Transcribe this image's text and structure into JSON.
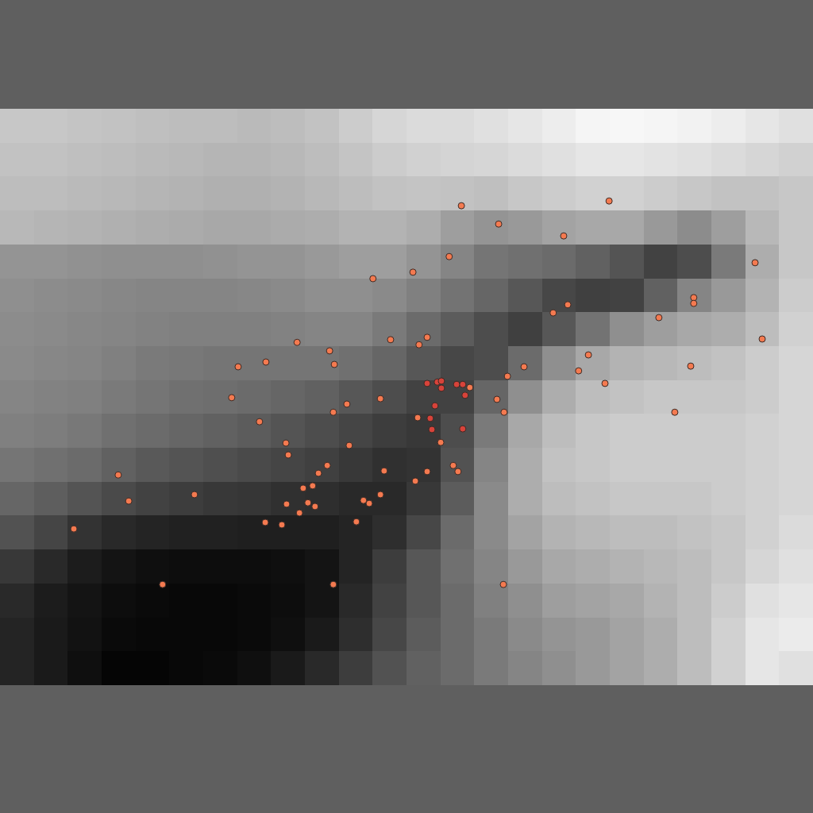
{
  "chart_data": {
    "type": "heatmap_scatter",
    "tick_labels": false,
    "grid": false,
    "xlim": [
      0,
      24
    ],
    "ylim": [
      17,
      0
    ],
    "heatmap": {
      "x": [
        0.5,
        1.5,
        2.5,
        3.5,
        4.5,
        5.5,
        6.5,
        7.5,
        8.5,
        9.5,
        10.5,
        11.5,
        12.5,
        13.5,
        14.5,
        15.5,
        16.5,
        17.5,
        18.5,
        19.5,
        20.5,
        21.5,
        22.5,
        23.5
      ],
      "y": [
        0.5,
        1.5,
        2.5,
        3.5,
        4.5,
        5.5,
        6.5,
        7.5,
        8.5,
        9.5,
        10.5,
        11.5,
        12.5,
        13.5,
        14.5,
        15.5,
        16.5
      ],
      "zlim": [
        0,
        1
      ],
      "z": [
        [
          0.78,
          0.78,
          0.77,
          0.76,
          0.75,
          0.74,
          0.74,
          0.73,
          0.74,
          0.76,
          0.8,
          0.84,
          0.86,
          0.86,
          0.88,
          0.9,
          0.93,
          0.96,
          0.97,
          0.96,
          0.95,
          0.93,
          0.9,
          0.88
        ],
        [
          0.76,
          0.76,
          0.75,
          0.74,
          0.73,
          0.72,
          0.71,
          0.71,
          0.72,
          0.74,
          0.77,
          0.8,
          0.82,
          0.83,
          0.84,
          0.86,
          0.88,
          0.9,
          0.9,
          0.89,
          0.88,
          0.86,
          0.84,
          0.82
        ],
        [
          0.74,
          0.74,
          0.73,
          0.72,
          0.71,
          0.7,
          0.69,
          0.69,
          0.7,
          0.72,
          0.74,
          0.76,
          0.77,
          0.76,
          0.75,
          0.78,
          0.8,
          0.82,
          0.82,
          0.8,
          0.78,
          0.76,
          0.76,
          0.78
        ],
        [
          0.72,
          0.71,
          0.7,
          0.69,
          0.68,
          0.67,
          0.66,
          0.66,
          0.67,
          0.68,
          0.7,
          0.7,
          0.68,
          0.62,
          0.58,
          0.6,
          0.64,
          0.66,
          0.66,
          0.6,
          0.55,
          0.62,
          0.72,
          0.78
        ],
        [
          0.58,
          0.58,
          0.57,
          0.56,
          0.56,
          0.56,
          0.57,
          0.58,
          0.58,
          0.6,
          0.62,
          0.62,
          0.58,
          0.52,
          0.46,
          0.44,
          0.42,
          0.38,
          0.33,
          0.26,
          0.3,
          0.48,
          0.68,
          0.78
        ],
        [
          0.56,
          0.55,
          0.54,
          0.53,
          0.52,
          0.52,
          0.52,
          0.53,
          0.54,
          0.56,
          0.56,
          0.54,
          0.5,
          0.45,
          0.4,
          0.34,
          0.28,
          0.25,
          0.26,
          0.38,
          0.52,
          0.6,
          0.7,
          0.8
        ],
        [
          0.55,
          0.54,
          0.53,
          0.52,
          0.51,
          0.5,
          0.5,
          0.5,
          0.51,
          0.52,
          0.52,
          0.48,
          0.42,
          0.36,
          0.3,
          0.25,
          0.34,
          0.45,
          0.56,
          0.62,
          0.66,
          0.68,
          0.74,
          0.82
        ],
        [
          0.54,
          0.53,
          0.52,
          0.5,
          0.48,
          0.47,
          0.46,
          0.46,
          0.46,
          0.46,
          0.44,
          0.4,
          0.34,
          0.28,
          0.3,
          0.42,
          0.56,
          0.66,
          0.7,
          0.72,
          0.74,
          0.76,
          0.8,
          0.84
        ],
        [
          0.52,
          0.51,
          0.5,
          0.48,
          0.46,
          0.44,
          0.43,
          0.42,
          0.4,
          0.38,
          0.34,
          0.3,
          0.26,
          0.26,
          0.4,
          0.56,
          0.68,
          0.74,
          0.76,
          0.78,
          0.78,
          0.78,
          0.8,
          0.84
        ],
        [
          0.5,
          0.49,
          0.47,
          0.44,
          0.42,
          0.4,
          0.38,
          0.36,
          0.33,
          0.3,
          0.27,
          0.24,
          0.22,
          0.3,
          0.48,
          0.66,
          0.74,
          0.78,
          0.8,
          0.8,
          0.8,
          0.8,
          0.82,
          0.84
        ],
        [
          0.46,
          0.44,
          0.42,
          0.38,
          0.35,
          0.33,
          0.31,
          0.29,
          0.27,
          0.25,
          0.22,
          0.19,
          0.2,
          0.32,
          0.52,
          0.68,
          0.76,
          0.78,
          0.8,
          0.8,
          0.8,
          0.8,
          0.82,
          0.84
        ],
        [
          0.4,
          0.37,
          0.33,
          0.29,
          0.26,
          0.24,
          0.22,
          0.21,
          0.19,
          0.18,
          0.16,
          0.16,
          0.22,
          0.36,
          0.54,
          0.68,
          0.74,
          0.76,
          0.78,
          0.78,
          0.78,
          0.8,
          0.82,
          0.84
        ],
        [
          0.32,
          0.27,
          0.2,
          0.16,
          0.14,
          0.13,
          0.13,
          0.12,
          0.12,
          0.12,
          0.14,
          0.18,
          0.28,
          0.42,
          0.54,
          0.64,
          0.7,
          0.72,
          0.74,
          0.74,
          0.76,
          0.78,
          0.82,
          0.86
        ],
        [
          0.22,
          0.16,
          0.11,
          0.08,
          0.06,
          0.05,
          0.05,
          0.05,
          0.06,
          0.08,
          0.14,
          0.24,
          0.34,
          0.44,
          0.52,
          0.6,
          0.66,
          0.68,
          0.7,
          0.72,
          0.74,
          0.78,
          0.84,
          0.88
        ],
        [
          0.16,
          0.11,
          0.08,
          0.05,
          0.04,
          0.03,
          0.03,
          0.04,
          0.05,
          0.08,
          0.16,
          0.26,
          0.34,
          0.42,
          0.5,
          0.56,
          0.62,
          0.64,
          0.66,
          0.7,
          0.74,
          0.8,
          0.88,
          0.9
        ],
        [
          0.14,
          0.1,
          0.07,
          0.04,
          0.03,
          0.03,
          0.03,
          0.04,
          0.06,
          0.1,
          0.18,
          0.28,
          0.36,
          0.42,
          0.48,
          0.54,
          0.58,
          0.6,
          0.64,
          0.68,
          0.74,
          0.82,
          0.9,
          0.92
        ],
        [
          0.14,
          0.1,
          0.06,
          0.02,
          0.02,
          0.03,
          0.04,
          0.06,
          0.1,
          0.16,
          0.24,
          0.32,
          0.38,
          0.42,
          0.48,
          0.52,
          0.56,
          0.6,
          0.64,
          0.68,
          0.74,
          0.82,
          0.9,
          0.88
        ]
      ]
    },
    "series": [
      {
        "type": "scatter",
        "color": "#f47a50",
        "marker": "circle",
        "x": [
          13.62,
          17.98,
          14.72,
          16.64,
          13.26,
          22.29,
          11.01,
          12.19,
          20.48,
          20.48,
          16.76,
          16.33,
          19.45,
          22.5,
          8.77,
          9.73,
          11.53,
          12.37,
          12.61,
          7.03,
          7.85,
          9.87,
          17.37,
          17.08,
          20.39,
          15.47,
          14.98,
          17.86,
          13.87,
          6.84,
          11.23,
          10.24,
          9.84,
          14.67,
          14.88,
          19.92,
          7.66,
          12.33,
          8.44,
          10.31,
          13.01,
          8.51,
          9.66,
          13.38,
          13.52,
          11.34,
          12.61,
          9.4,
          3.49,
          12.26,
          9.23,
          8.95,
          5.74,
          11.23,
          3.8,
          9.09,
          10.73,
          10.9,
          8.46,
          9.3,
          8.84,
          7.83,
          8.32,
          10.52,
          2.18,
          4.8,
          9.84,
          14.86
        ],
        "y": [
          2.86,
          2.72,
          3.4,
          3.75,
          4.36,
          4.54,
          5.01,
          4.82,
          5.57,
          5.74,
          5.78,
          6.02,
          6.16,
          6.79,
          6.89,
          7.14,
          6.81,
          6.96,
          6.74,
          7.61,
          7.47,
          7.54,
          7.26,
          7.73,
          7.59,
          7.61,
          7.89,
          8.1,
          8.22,
          8.52,
          8.55,
          8.71,
          8.95,
          8.57,
          8.95,
          8.95,
          9.23,
          9.11,
          9.86,
          9.93,
          9.84,
          10.21,
          10.52,
          10.52,
          10.7,
          10.68,
          10.7,
          10.75,
          10.8,
          10.98,
          11.12,
          11.19,
          11.38,
          11.38,
          11.57,
          11.62,
          11.55,
          11.64,
          11.66,
          11.73,
          11.92,
          12.2,
          12.27,
          12.18,
          12.39,
          14.03,
          14.03,
          14.03
        ]
      },
      {
        "type": "scatter",
        "color": "#d8433a",
        "marker": "circle",
        "x": [
          12.61,
          12.91,
          13.03,
          13.03,
          13.48,
          13.66,
          13.73,
          12.84,
          12.7,
          12.75,
          13.66
        ],
        "y": [
          8.1,
          8.06,
          8.03,
          8.24,
          8.13,
          8.13,
          8.45,
          8.76,
          9.13,
          9.46,
          9.44
        ]
      }
    ]
  }
}
